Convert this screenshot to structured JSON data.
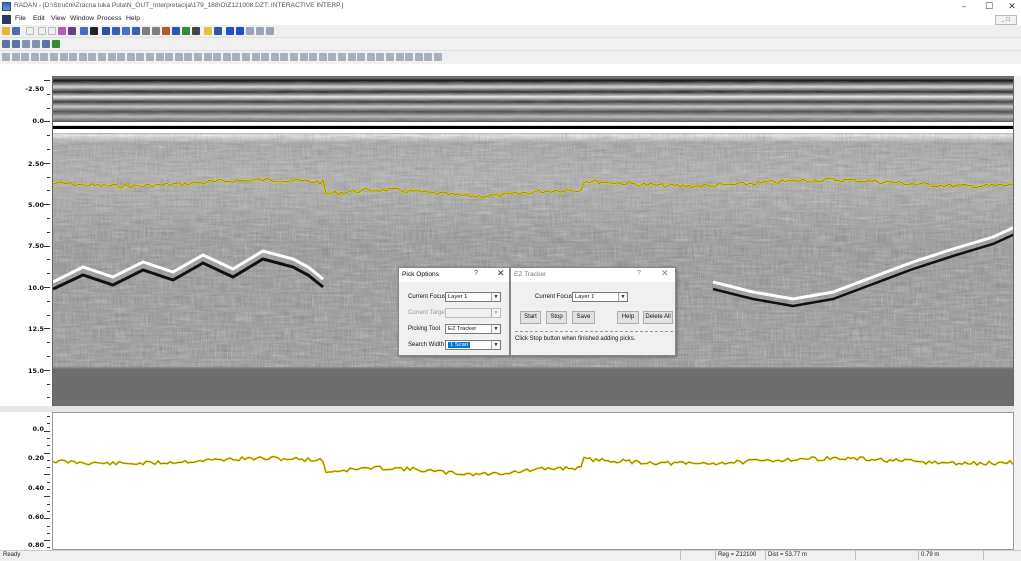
{
  "window": {
    "title": "RADAN - [D:\\Stručni\\Zracna luka Pula\\N_OUT_Interpretacija\\179_188\\O\\Z121008.DZT: INTERACTIVE INTERP.]",
    "minimize": "–",
    "maximize": "☐",
    "close": "✕"
  },
  "menu": [
    "File",
    "Edit",
    "View",
    "Window",
    "Process",
    "Help"
  ],
  "mdi_controls": "_ ☐",
  "radargram": {
    "depth_labels": [
      "-2.50",
      "0.0",
      "2.50",
      "5.00",
      "7.50",
      "10.0",
      "12.5",
      "15.0"
    ],
    "colors": {
      "pick": "#e6d200",
      "background": "#777777"
    }
  },
  "profile": {
    "depth_labels": [
      "0.0",
      "0.20",
      "0.40",
      "0.60",
      "0.80"
    ]
  },
  "pick_options": {
    "title": "Pick Options",
    "help": "?",
    "close": "✕",
    "current_focus_label": "Current Focus",
    "current_focus_value": "Layer 1",
    "current_target_label": "Current Target",
    "current_target_value": "",
    "picking_tool_label": "Picking Tool",
    "picking_tool_value": "EZ Tracker",
    "search_width_label": "Search Width",
    "search_width_value": "1 Scan"
  },
  "ez_tracker": {
    "title": "EZ Tracker",
    "help": "?",
    "close": "✕",
    "current_focus_label": "Current Focus",
    "current_focus_value": "Layer 1",
    "buttons": [
      "Start",
      "Stop",
      "Save",
      "Help",
      "Delete All"
    ],
    "message": "Click Stop button when finished adding picks."
  },
  "status": {
    "ready": "Ready",
    "reg": "Reg = Z12100",
    "dist": "Dist = 53.77 m",
    "depth": "0.79 m"
  },
  "icons": {
    "menu_doc": "document-icon",
    "app": "radan-app-icon",
    "dropdown": "chevron-down-icon"
  }
}
